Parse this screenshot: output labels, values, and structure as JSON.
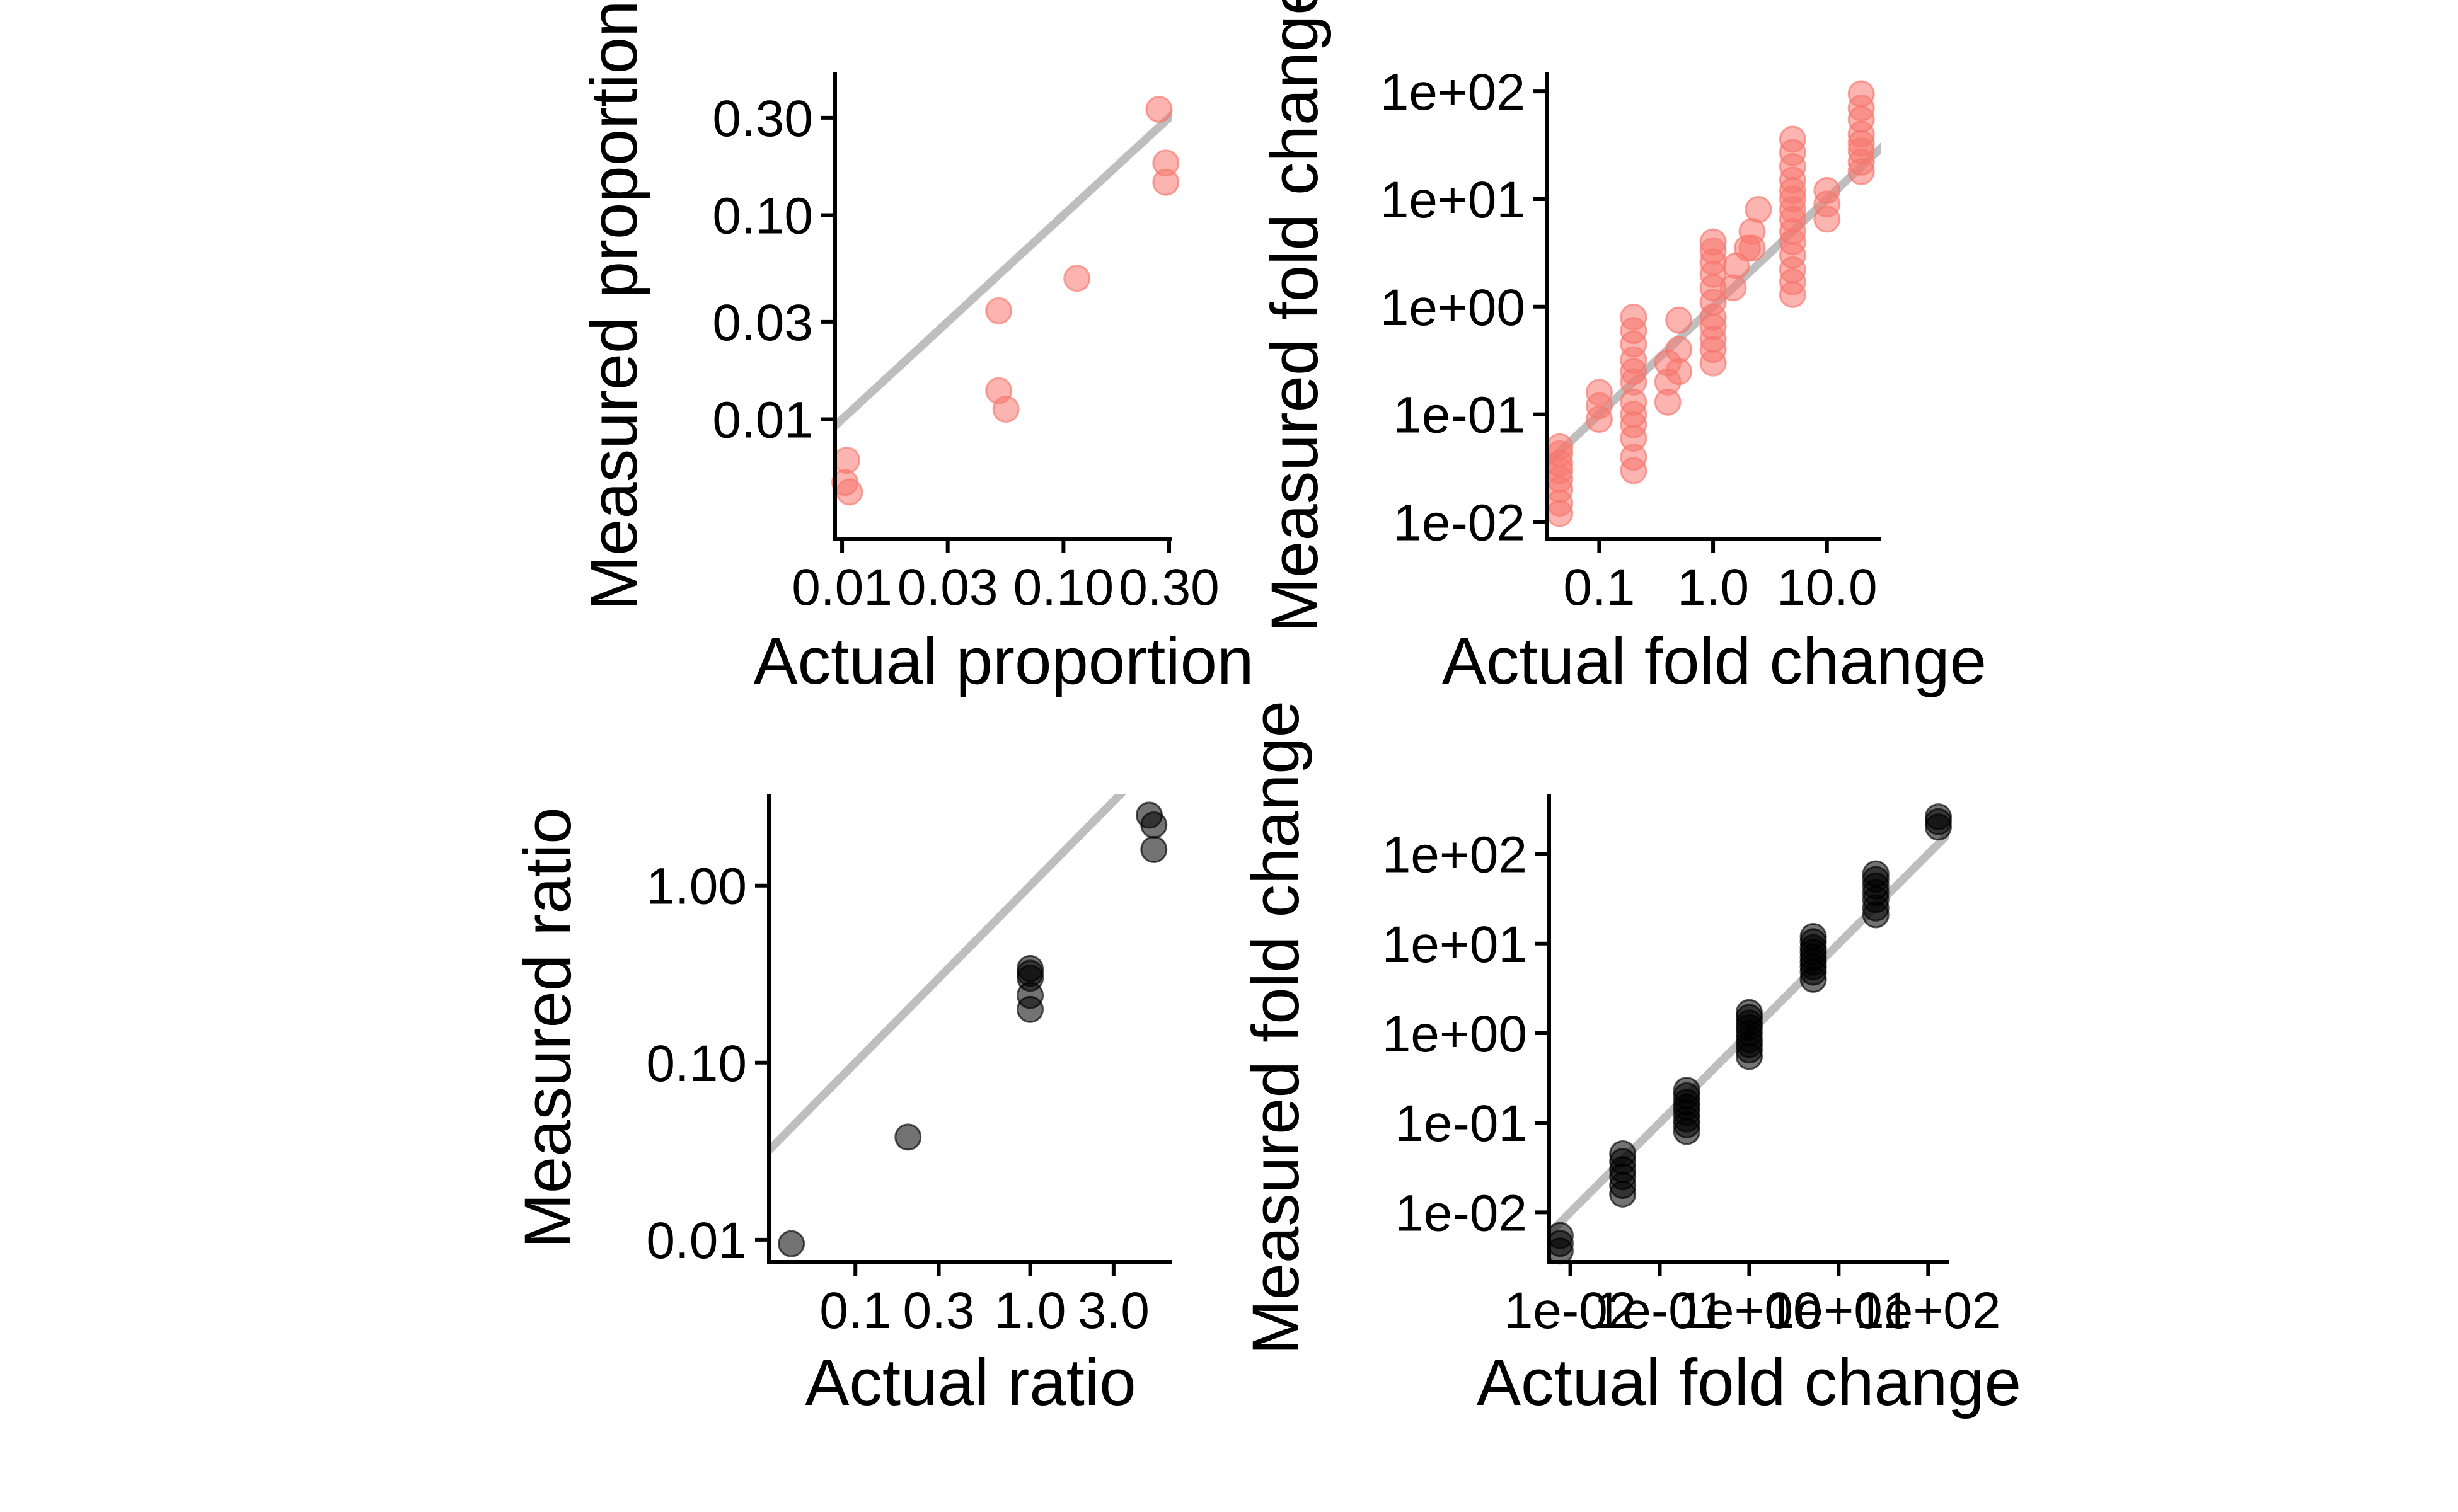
{
  "colors": {
    "pink_points": "#f8766d",
    "black_points": "#000000",
    "reference_line": "#bebebe"
  },
  "chart_data": [
    {
      "id": "panel_a",
      "type": "scatter",
      "xlabel": "Actual proportion",
      "ylabel": "Measured proportion",
      "x_scale": "log10",
      "y_scale": "log10",
      "xlim": [
        0.0093,
        0.31
      ],
      "ylim": [
        0.0026,
        0.5
      ],
      "x_ticks": [
        {
          "value": 0.01,
          "label": "0.01"
        },
        {
          "value": 0.03,
          "label": "0.03"
        },
        {
          "value": 0.1,
          "label": "0.10"
        },
        {
          "value": 0.3,
          "label": "0.30"
        }
      ],
      "y_ticks": [
        {
          "value": 0.01,
          "label": "0.01"
        },
        {
          "value": 0.03,
          "label": "0.03"
        },
        {
          "value": 0.1,
          "label": "0.10"
        },
        {
          "value": 0.3,
          "label": "0.30"
        }
      ],
      "reference_line": "y = x",
      "point_color": "#f8766d",
      "point_opacity": 0.55,
      "points": [
        [
          0.0105,
          0.0063
        ],
        [
          0.0103,
          0.0049
        ],
        [
          0.0108,
          0.0044
        ],
        [
          0.051,
          0.034
        ],
        [
          0.051,
          0.0138
        ],
        [
          0.055,
          0.0112
        ],
        [
          0.115,
          0.049
        ],
        [
          0.27,
          0.33
        ],
        [
          0.29,
          0.18
        ],
        [
          0.29,
          0.145
        ]
      ]
    },
    {
      "id": "panel_b",
      "type": "scatter",
      "xlabel": "Actual fold change",
      "ylabel": "Measured fold change",
      "x_scale": "log10",
      "y_scale": "log10",
      "xlim": [
        0.035,
        30
      ],
      "ylim": [
        0.007,
        150
      ],
      "x_ticks": [
        {
          "value": 0.1,
          "label": "0.1"
        },
        {
          "value": 1,
          "label": "1.0"
        },
        {
          "value": 10,
          "label": "10.0"
        }
      ],
      "y_ticks": [
        {
          "value": 0.01,
          "label": "1e-02"
        },
        {
          "value": 0.1,
          "label": "1e-01"
        },
        {
          "value": 1,
          "label": "1e+00"
        },
        {
          "value": 10,
          "label": "1e+01"
        },
        {
          "value": 100,
          "label": "1e+02"
        }
      ],
      "reference_line": "y = x",
      "point_color": "#f8766d",
      "point_opacity": 0.55,
      "points": [
        [
          0.045,
          0.012
        ],
        [
          0.045,
          0.015
        ],
        [
          0.045,
          0.02
        ],
        [
          0.045,
          0.025
        ],
        [
          0.045,
          0.03
        ],
        [
          0.045,
          0.035
        ],
        [
          0.045,
          0.043
        ],
        [
          0.045,
          0.05
        ],
        [
          0.1,
          0.09
        ],
        [
          0.1,
          0.12
        ],
        [
          0.1,
          0.16
        ],
        [
          0.2,
          0.03
        ],
        [
          0.2,
          0.04
        ],
        [
          0.2,
          0.06
        ],
        [
          0.2,
          0.08
        ],
        [
          0.2,
          0.1
        ],
        [
          0.2,
          0.13
        ],
        [
          0.2,
          0.2
        ],
        [
          0.2,
          0.25
        ],
        [
          0.2,
          0.32
        ],
        [
          0.2,
          0.45
        ],
        [
          0.2,
          0.6
        ],
        [
          0.2,
          0.8
        ],
        [
          0.4,
          0.13
        ],
        [
          0.4,
          0.2
        ],
        [
          0.4,
          0.3
        ],
        [
          0.5,
          0.25
        ],
        [
          0.5,
          0.4
        ],
        [
          0.5,
          0.75
        ],
        [
          1,
          0.3
        ],
        [
          1,
          0.4
        ],
        [
          1,
          0.5
        ],
        [
          1,
          0.65
        ],
        [
          1,
          0.8
        ],
        [
          1,
          1.1
        ],
        [
          1,
          1.5
        ],
        [
          1,
          2
        ],
        [
          1,
          2.6
        ],
        [
          1,
          3.3
        ],
        [
          1,
          4
        ],
        [
          1.5,
          1.5
        ],
        [
          1.6,
          2.4
        ],
        [
          2,
          3.5
        ],
        [
          2.2,
          5
        ],
        [
          2.5,
          8
        ],
        [
          2.2,
          3.5
        ],
        [
          5,
          1.3
        ],
        [
          5,
          1.7
        ],
        [
          5,
          2.2
        ],
        [
          5,
          3
        ],
        [
          5,
          4
        ],
        [
          5,
          5
        ],
        [
          5,
          6.5
        ],
        [
          5,
          8
        ],
        [
          5,
          10
        ],
        [
          5,
          12
        ],
        [
          5,
          15
        ],
        [
          5,
          20
        ],
        [
          5,
          27
        ],
        [
          5,
          36
        ],
        [
          10,
          6.5
        ],
        [
          10,
          9
        ],
        [
          10,
          12
        ],
        [
          20,
          18
        ],
        [
          20,
          22
        ],
        [
          20,
          28
        ],
        [
          20,
          33
        ],
        [
          20,
          40
        ],
        [
          20,
          55
        ],
        [
          20,
          70
        ],
        [
          20,
          95
        ]
      ]
    },
    {
      "id": "panel_c",
      "type": "scatter",
      "xlabel": "Actual ratio",
      "ylabel": "Measured ratio",
      "x_scale": "log10",
      "y_scale": "log10",
      "xlim": [
        0.032,
        6.5
      ],
      "ylim": [
        0.0075,
        3.3
      ],
      "x_ticks": [
        {
          "value": 0.1,
          "label": "0.1"
        },
        {
          "value": 0.3,
          "label": "0.3"
        },
        {
          "value": 1,
          "label": "1.0"
        },
        {
          "value": 3,
          "label": "3.0"
        }
      ],
      "y_ticks": [
        {
          "value": 0.01,
          "label": "0.01"
        },
        {
          "value": 0.1,
          "label": "0.10"
        },
        {
          "value": 1,
          "label": "1.00"
        }
      ],
      "reference_line": "y = x",
      "point_color": "#000000",
      "point_opacity": 0.55,
      "points": [
        [
          0.043,
          0.0095
        ],
        [
          0.2,
          0.038
        ],
        [
          1,
          0.34
        ],
        [
          1,
          0.32
        ],
        [
          1,
          0.3
        ],
        [
          1,
          0.24
        ],
        [
          1,
          0.2
        ],
        [
          4.8,
          2.5
        ],
        [
          5.1,
          2.2
        ],
        [
          5.1,
          1.6
        ]
      ]
    },
    {
      "id": "panel_d",
      "type": "scatter",
      "xlabel": "Actual fold change",
      "ylabel": "Measured fold change",
      "x_scale": "log10",
      "y_scale": "log10",
      "xlim": [
        0.0058,
        170
      ],
      "ylim": [
        0.0028,
        470
      ],
      "x_ticks": [
        {
          "value": 0.01,
          "label": "1e-02"
        },
        {
          "value": 0.1,
          "label": "1e-01"
        },
        {
          "value": 1,
          "label": "1e+00"
        },
        {
          "value": 10,
          "label": "1e+01"
        },
        {
          "value": 100,
          "label": "1e+02"
        }
      ],
      "y_ticks": [
        {
          "value": 0.01,
          "label": "1e-02"
        },
        {
          "value": 0.1,
          "label": "1e-01"
        },
        {
          "value": 1,
          "label": "1e+00"
        },
        {
          "value": 10,
          "label": "1e+01"
        },
        {
          "value": 100,
          "label": "1e+02"
        }
      ],
      "reference_line": "y = x",
      "point_color": "#000000",
      "point_opacity": 0.55,
      "points": [
        [
          0.0077,
          0.0037
        ],
        [
          0.0077,
          0.0045
        ],
        [
          0.0077,
          0.0055
        ],
        [
          0.0385,
          0.016
        ],
        [
          0.0385,
          0.02
        ],
        [
          0.0385,
          0.025
        ],
        [
          0.0385,
          0.03
        ],
        [
          0.0385,
          0.037
        ],
        [
          0.0385,
          0.045
        ],
        [
          0.2,
          0.08
        ],
        [
          0.2,
          0.095
        ],
        [
          0.2,
          0.11
        ],
        [
          0.2,
          0.13
        ],
        [
          0.2,
          0.15
        ],
        [
          0.2,
          0.17
        ],
        [
          0.2,
          0.2
        ],
        [
          0.2,
          0.23
        ],
        [
          1,
          0.55
        ],
        [
          1,
          0.65
        ],
        [
          1,
          0.75
        ],
        [
          1,
          0.85
        ],
        [
          1,
          1
        ],
        [
          1,
          1.15
        ],
        [
          1,
          1.3
        ],
        [
          1,
          1.5
        ],
        [
          1,
          1.7
        ],
        [
          5.2,
          4
        ],
        [
          5.2,
          4.8
        ],
        [
          5.2,
          5.5
        ],
        [
          5.2,
          6.2
        ],
        [
          5.2,
          7
        ],
        [
          5.2,
          8
        ],
        [
          5.2,
          9
        ],
        [
          5.2,
          10.5
        ],
        [
          5.2,
          12
        ],
        [
          26,
          21
        ],
        [
          26,
          25
        ],
        [
          26,
          31
        ],
        [
          26,
          37
        ],
        [
          26,
          44
        ],
        [
          26,
          52
        ],
        [
          26,
          60
        ],
        [
          130,
          200
        ],
        [
          130,
          230
        ],
        [
          130,
          260
        ]
      ]
    }
  ]
}
